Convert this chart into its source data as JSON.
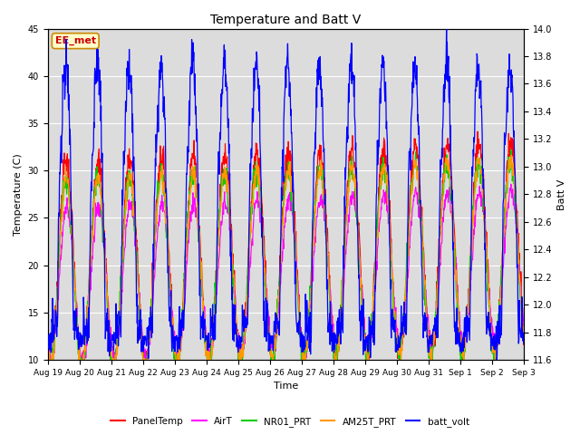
{
  "title": "Temperature and Batt V",
  "xlabel": "Time",
  "ylabel_left": "Temperature (C)",
  "ylabel_right": "Batt V",
  "annotation": "EE_met",
  "ylim_left": [
    10,
    45
  ],
  "ylim_right": [
    11.6,
    14.0
  ],
  "yticks_left": [
    10,
    15,
    20,
    25,
    30,
    35,
    40,
    45
  ],
  "yticks_right": [
    11.6,
    11.8,
    12.0,
    12.2,
    12.4,
    12.6,
    12.8,
    13.0,
    13.2,
    13.4,
    13.6,
    13.8,
    14.0
  ],
  "x_tick_labels": [
    "Aug 19",
    "Aug 20",
    "Aug 21",
    "Aug 22",
    "Aug 23",
    "Aug 24",
    "Aug 25",
    "Aug 26",
    "Aug 27",
    "Aug 28",
    "Aug 29",
    "Aug 30",
    "Aug 31",
    "Sep 1",
    "Sep 2",
    "Sep 3"
  ],
  "legend_entries": [
    "PanelTemp",
    "AirT",
    "NR01_PRT",
    "AM25T_PRT",
    "batt_volt"
  ],
  "legend_colors": [
    "#ff0000",
    "#ff00ff",
    "#00cc00",
    "#ff9900",
    "#0000ff"
  ],
  "bg_color": "#dcdcdc",
  "n_days": 15,
  "pts_per_day": 96
}
